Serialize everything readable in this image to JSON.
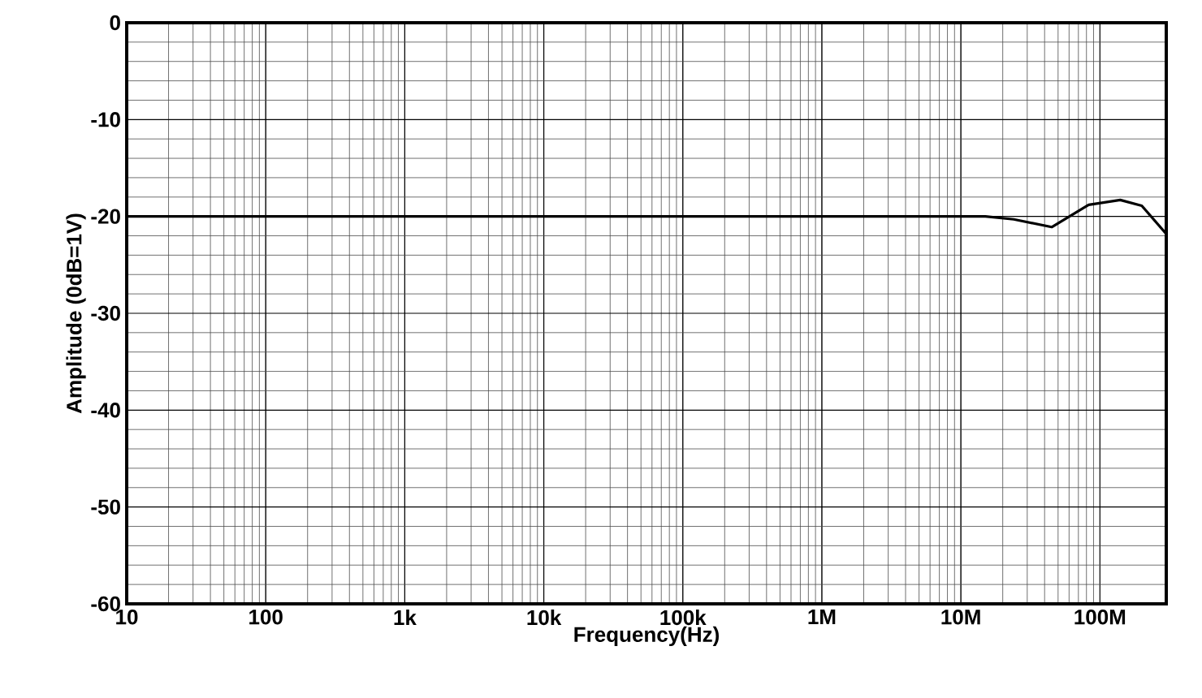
{
  "chart_data": {
    "type": "line",
    "xlabel": "Frequency(Hz)",
    "ylabel": "Amplitude (0dB=1V)",
    "log": "x",
    "grid": true,
    "xlim": [
      10,
      300000000
    ],
    "ylim": [
      -60,
      0
    ],
    "xticks": [
      {
        "value": 10,
        "label": "10"
      },
      {
        "value": 100,
        "label": "100"
      },
      {
        "value": 1000,
        "label": "1k"
      },
      {
        "value": 10000,
        "label": "10k"
      },
      {
        "value": 100000,
        "label": "100k"
      },
      {
        "value": 1000000,
        "label": "1M"
      },
      {
        "value": 10000000,
        "label": "10M"
      },
      {
        "value": 100000000,
        "label": "100M"
      }
    ],
    "yticks": [
      -60,
      -50,
      -40,
      -30,
      -20,
      -10,
      0
    ],
    "series": [
      {
        "color": "#000000",
        "x": [
          10,
          15000000,
          24000000,
          45000000,
          83000000,
          140000000,
          200000000,
          300000000
        ],
        "values": [
          -20,
          -20,
          -20.3,
          -21.1,
          -18.8,
          -18.3,
          -18.9,
          -21.8
        ]
      }
    ]
  }
}
